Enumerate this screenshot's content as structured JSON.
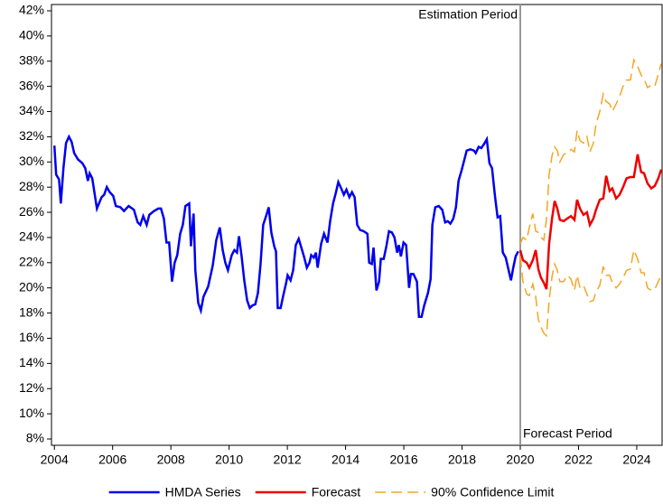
{
  "chart_data": {
    "type": "line",
    "xlim": [
      2003.9,
      2024.87
    ],
    "ylim": [
      7.5,
      42.5
    ],
    "xticks": [
      2004,
      2006,
      2008,
      2010,
      2012,
      2014,
      2016,
      2018,
      2020,
      2022,
      2024
    ],
    "yticks": [
      {
        "value": 8,
        "label": "8%"
      },
      {
        "value": 10,
        "label": "10%"
      },
      {
        "value": 12,
        "label": "12%"
      },
      {
        "value": 14,
        "label": "14%"
      },
      {
        "value": 16,
        "label": "16%"
      },
      {
        "value": 18,
        "label": "18%"
      },
      {
        "value": 20,
        "label": "20%"
      },
      {
        "value": 22,
        "label": "22%"
      },
      {
        "value": 24,
        "label": "24%"
      },
      {
        "value": 26,
        "label": "26%"
      },
      {
        "value": 28,
        "label": "28%"
      },
      {
        "value": 30,
        "label": "30%"
      },
      {
        "value": 32,
        "label": "32%"
      },
      {
        "value": 34,
        "label": "34%"
      },
      {
        "value": 36,
        "label": "36%"
      },
      {
        "value": 38,
        "label": "38%"
      },
      {
        "value": 40,
        "label": "40%"
      },
      {
        "value": 42,
        "label": "42%"
      }
    ],
    "vline": 2020,
    "annotations": [
      "Estimation Period",
      "Forecast Period"
    ],
    "series": [
      {
        "name": "HMDA Series",
        "color": "#0000ee",
        "line_style": "solid",
        "x": [
          2004.0,
          2004.06,
          2004.16,
          2004.22,
          2004.31,
          2004.4,
          2004.5,
          2004.59,
          2004.68,
          2004.81,
          2004.96,
          2005.06,
          2005.15,
          2005.21,
          2005.3,
          2005.46,
          2005.62,
          2005.71,
          2005.8,
          2005.9,
          2006.02,
          2006.11,
          2006.27,
          2006.39,
          2006.55,
          2006.73,
          2006.86,
          2006.95,
          2007.05,
          2007.17,
          2007.26,
          2007.42,
          2007.57,
          2007.66,
          2007.76,
          2007.85,
          2007.94,
          2008.04,
          2008.13,
          2008.22,
          2008.32,
          2008.41,
          2008.5,
          2008.63,
          2008.69,
          2008.78,
          2008.84,
          2008.94,
          2009.03,
          2009.12,
          2009.28,
          2009.44,
          2009.56,
          2009.68,
          2009.78,
          2009.87,
          2009.96,
          2010.09,
          2010.18,
          2010.27,
          2010.34,
          2010.43,
          2010.52,
          2010.62,
          2010.71,
          2010.8,
          2010.9,
          2010.99,
          2011.08,
          2011.17,
          2011.27,
          2011.36,
          2011.45,
          2011.55,
          2011.61,
          2011.67,
          2011.77,
          2011.86,
          2011.95,
          2012.01,
          2012.11,
          2012.2,
          2012.29,
          2012.39,
          2012.48,
          2012.57,
          2012.67,
          2012.76,
          2012.82,
          2012.91,
          2012.98,
          2013.04,
          2013.16,
          2013.26,
          2013.38,
          2013.47,
          2013.57,
          2013.66,
          2013.75,
          2013.85,
          2013.94,
          2014.03,
          2014.13,
          2014.22,
          2014.31,
          2014.4,
          2014.5,
          2014.62,
          2014.75,
          2014.81,
          2014.9,
          2014.96,
          2015.06,
          2015.15,
          2015.21,
          2015.31,
          2015.4,
          2015.49,
          2015.59,
          2015.68,
          2015.77,
          2015.83,
          2015.9,
          2015.99,
          2016.08,
          2016.18,
          2016.24,
          2016.33,
          2016.45,
          2016.52,
          2016.61,
          2016.7,
          2016.83,
          2016.92,
          2016.98,
          2017.08,
          2017.2,
          2017.32,
          2017.42,
          2017.51,
          2017.6,
          2017.7,
          2017.79,
          2017.88,
          2017.98,
          2018.07,
          2018.16,
          2018.29,
          2018.41,
          2018.47,
          2018.57,
          2018.66,
          2018.75,
          2018.85,
          2018.94,
          2019.03,
          2019.13,
          2019.22,
          2019.31,
          2019.4,
          2019.5,
          2019.59,
          2019.68,
          2019.75,
          2019.84,
          2019.93
        ],
        "values": [
          31.3,
          29.0,
          28.6,
          26.7,
          29.5,
          31.5,
          32.0,
          31.6,
          30.7,
          30.2,
          29.9,
          29.5,
          28.5,
          29.1,
          28.7,
          26.3,
          27.2,
          27.4,
          28.0,
          27.6,
          27.3,
          26.5,
          26.4,
          26.1,
          26.5,
          26.2,
          25.2,
          25.0,
          25.7,
          25.0,
          25.8,
          26.1,
          26.3,
          26.3,
          25.5,
          23.6,
          23.6,
          20.5,
          22.0,
          22.6,
          24.3,
          25.0,
          26.5,
          26.7,
          23.3,
          25.9,
          21.4,
          18.8,
          18.2,
          19.3,
          20.1,
          21.8,
          23.8,
          24.8,
          23.0,
          22.0,
          21.4,
          22.6,
          23.0,
          22.8,
          24.1,
          22.5,
          20.6,
          19.0,
          18.4,
          18.6,
          18.7,
          19.6,
          21.9,
          25.0,
          25.7,
          26.4,
          24.4,
          23.3,
          22.9,
          18.4,
          18.4,
          19.4,
          20.3,
          21.0,
          20.6,
          21.4,
          23.4,
          23.9,
          23.2,
          22.5,
          21.6,
          22.0,
          22.6,
          22.4,
          22.8,
          21.6,
          23.5,
          24.3,
          23.6,
          25.3,
          26.7,
          27.5,
          28.4,
          27.9,
          27.4,
          27.8,
          27.2,
          27.6,
          27.2,
          25.0,
          24.6,
          24.5,
          24.3,
          22.0,
          21.9,
          23.2,
          19.8,
          20.5,
          22.3,
          22.3,
          23.3,
          24.5,
          24.4,
          24.0,
          22.8,
          23.4,
          22.5,
          23.6,
          23.4,
          20.0,
          21.1,
          21.1,
          20.5,
          17.7,
          17.7,
          18.6,
          19.6,
          20.7,
          25.0,
          26.4,
          26.5,
          26.2,
          25.2,
          25.3,
          25.1,
          25.5,
          26.4,
          28.5,
          29.3,
          30.1,
          30.9,
          31.0,
          30.9,
          30.7,
          31.2,
          31.1,
          31.4,
          31.8,
          29.9,
          29.5,
          27.3,
          25.6,
          25.7,
          22.8,
          22.4,
          21.5,
          20.6,
          21.5,
          22.5,
          22.9
        ]
      },
      {
        "name": "Forecast",
        "color": "#ee0000",
        "line_style": "solid",
        "x": [
          2020.0,
          2020.09,
          2020.22,
          2020.31,
          2020.43,
          2020.53,
          2020.62,
          2020.71,
          2020.81,
          2020.9,
          2020.99,
          2021.09,
          2021.18,
          2021.27,
          2021.36,
          2021.49,
          2021.61,
          2021.74,
          2021.86,
          2021.95,
          2022.05,
          2022.17,
          2022.29,
          2022.39,
          2022.51,
          2022.6,
          2022.73,
          2022.85,
          2022.95,
          2023.07,
          2023.16,
          2023.29,
          2023.41,
          2023.53,
          2023.65,
          2023.78,
          2023.9,
          2024.03,
          2024.15,
          2024.25,
          2024.37,
          2024.5,
          2024.62,
          2024.74,
          2024.84
        ],
        "values": [
          23.0,
          22.2,
          22.0,
          21.6,
          22.2,
          23.0,
          21.5,
          20.8,
          20.4,
          19.9,
          23.5,
          25.5,
          26.9,
          26.3,
          25.4,
          25.3,
          25.5,
          25.7,
          25.4,
          27.0,
          26.3,
          25.8,
          26.0,
          25.0,
          25.5,
          26.2,
          27.0,
          27.1,
          28.9,
          27.7,
          27.9,
          27.1,
          27.4,
          28.0,
          28.7,
          28.8,
          28.8,
          30.6,
          29.2,
          29.1,
          28.3,
          27.9,
          28.1,
          28.7,
          29.4
        ]
      },
      {
        "name": "90% Confidence Limit",
        "color": "#f5a623",
        "line_style": "dashed",
        "x": [
          2020.0,
          2020.09,
          2020.22,
          2020.31,
          2020.43,
          2020.53,
          2020.62,
          2020.71,
          2020.81,
          2020.9,
          2020.99,
          2021.09,
          2021.18,
          2021.27,
          2021.36,
          2021.49,
          2021.61,
          2021.74,
          2021.86,
          2021.95,
          2022.05,
          2022.17,
          2022.29,
          2022.39,
          2022.51,
          2022.6,
          2022.73,
          2022.85,
          2022.95,
          2023.07,
          2023.16,
          2023.29,
          2023.41,
          2023.53,
          2023.65,
          2023.78,
          2023.9,
          2024.03,
          2024.15,
          2024.25,
          2024.37,
          2024.5,
          2024.62,
          2024.74,
          2024.84
        ],
        "values": [
          23.5,
          24.0,
          23.8,
          24.8,
          25.9,
          24.5,
          24.4,
          24.0,
          23.8,
          25.5,
          29.0,
          30.5,
          31.2,
          30.9,
          30.0,
          30.6,
          30.7,
          31.0,
          30.8,
          32.5,
          31.7,
          31.5,
          32.0,
          30.8,
          31.5,
          33.0,
          34.0,
          35.4,
          34.8,
          34.6,
          34.0,
          34.6,
          35.2,
          36.0,
          36.5,
          36.5,
          38.1,
          37.6,
          36.9,
          36.6,
          35.9,
          36.1,
          36.0,
          37.0,
          37.8
        ]
      },
      {
        "color": "#f5a623",
        "line_style": "dashed",
        "x": [
          2020.0,
          2020.09,
          2020.22,
          2020.31,
          2020.43,
          2020.53,
          2020.62,
          2020.71,
          2020.81,
          2020.9,
          2020.99,
          2021.09,
          2021.18,
          2021.27,
          2021.36,
          2021.49,
          2021.61,
          2021.74,
          2021.86,
          2021.95,
          2022.05,
          2022.17,
          2022.29,
          2022.39,
          2022.51,
          2022.6,
          2022.73,
          2022.85,
          2022.95,
          2023.07,
          2023.16,
          2023.29,
          2023.41,
          2023.53,
          2023.65,
          2023.78,
          2023.9,
          2024.03,
          2024.15,
          2024.25,
          2024.37,
          2024.5,
          2024.62,
          2024.74,
          2024.84
        ],
        "values": [
          22.5,
          20.5,
          19.5,
          19.4,
          20.3,
          19.3,
          17.5,
          16.9,
          16.4,
          16.2,
          19.0,
          20.9,
          21.9,
          21.4,
          20.5,
          20.5,
          21.0,
          20.7,
          19.8,
          21.0,
          20.0,
          20.2,
          19.5,
          18.9,
          19.0,
          19.7,
          20.2,
          21.7,
          21.0,
          21.0,
          20.4,
          20.0,
          20.3,
          20.8,
          21.4,
          21.5,
          23.0,
          22.3,
          21.2,
          21.2,
          20.0,
          19.8,
          19.9,
          20.5,
          21.0
        ]
      }
    ]
  }
}
